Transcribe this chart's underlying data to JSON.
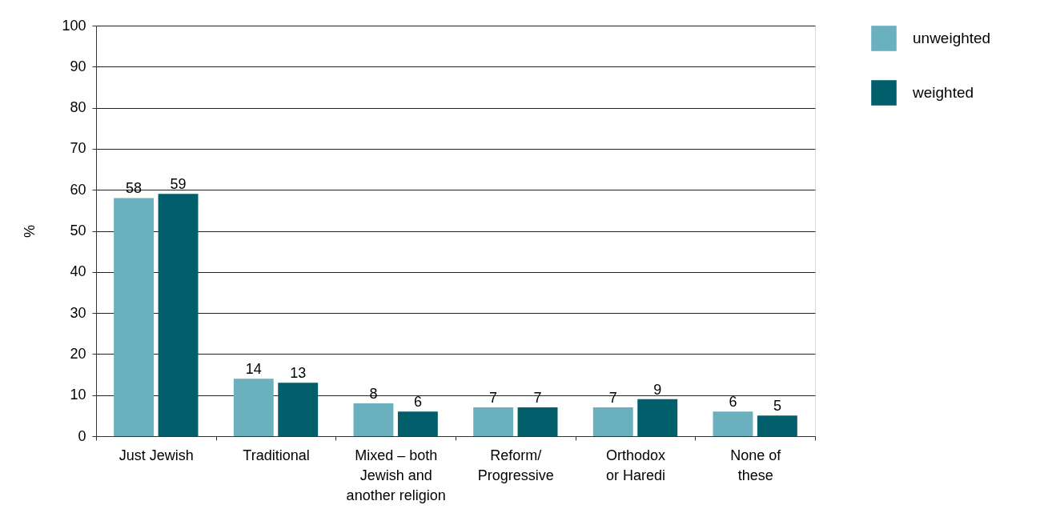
{
  "chart_data": {
    "type": "bar",
    "ylabel": "%",
    "categories": [
      "Just Jewish",
      "Traditional",
      "Mixed – both\nJewish and\nanother religion",
      "Reform/\nProgressive",
      "Orthodox\nor Haredi",
      "None of\nthese"
    ],
    "series": [
      {
        "name": "unweighted",
        "color": "#6ab0bf",
        "values": [
          58,
          14,
          8,
          7,
          7,
          6
        ]
      },
      {
        "name": "weighted",
        "color": "#005f6b",
        "values": [
          59,
          13,
          6,
          7,
          9,
          5
        ]
      }
    ],
    "ylim": [
      0,
      100
    ],
    "yticks": [
      0,
      10,
      20,
      30,
      40,
      50,
      60,
      70,
      80,
      90,
      100
    ],
    "grid": "y",
    "legend": "right",
    "data_labels": true
  }
}
